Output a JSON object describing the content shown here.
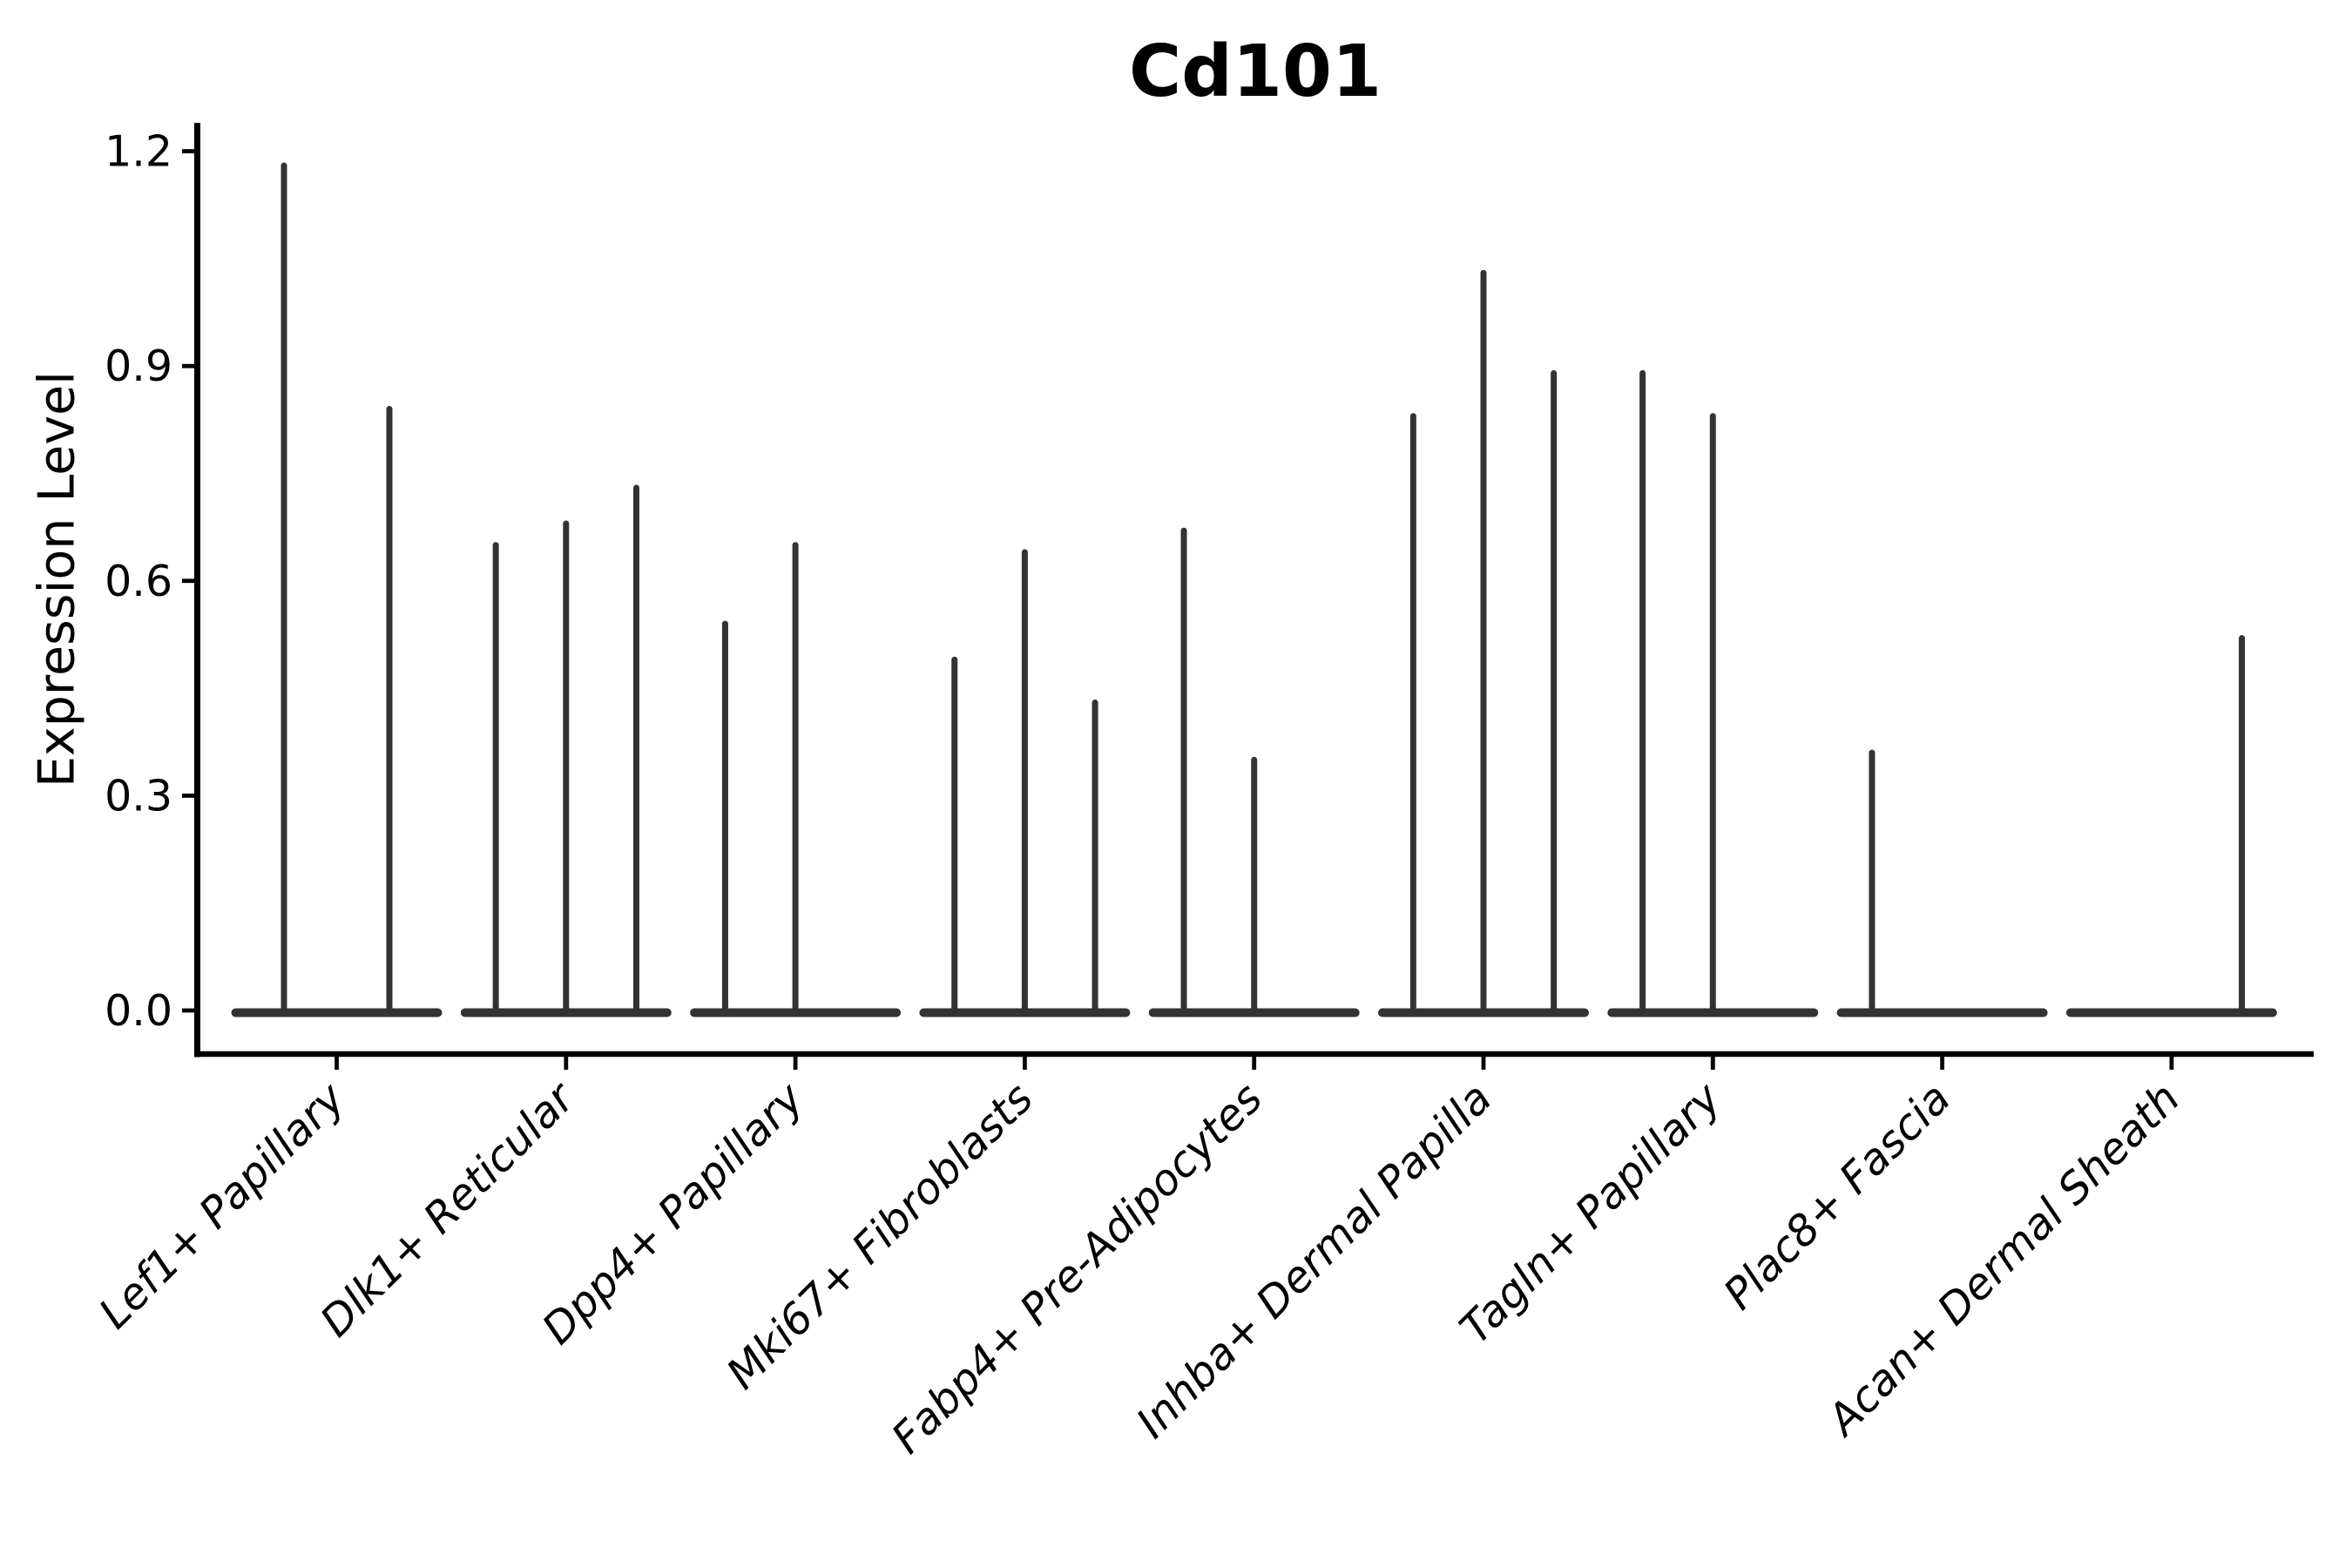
{
  "chart_data": {
    "type": "violin",
    "title": "Cd101",
    "ylabel": "Expression Level",
    "xlabel": "",
    "yticks": [
      0.0,
      0.3,
      0.6,
      0.9,
      1.2
    ],
    "ylim": [
      -0.06,
      1.27
    ],
    "grid": false,
    "legend": false,
    "violin_color": "#333333",
    "axis_color": "#000000",
    "background_color": "#ffffff",
    "x_tick_label_rotation_deg": 45,
    "groups": [
      {
        "label": "Lef1+ Papillary",
        "violins": [
          1.18,
          0.84
        ]
      },
      {
        "label": "Dlk1+ Reticular",
        "violins": [
          0.65,
          0.68,
          0.73
        ]
      },
      {
        "label": "Dpp4+ Papillary",
        "violins": [
          0.54,
          0.65,
          0
        ]
      },
      {
        "label": "Mki67+ Fibroblasts",
        "violins": [
          0.49,
          0.64,
          0.43
        ]
      },
      {
        "label": "Fabp4+ Pre-Adipocytes",
        "violins": [
          0.67,
          0.35,
          0
        ]
      },
      {
        "label": "Inhba+ Dermal Papilla",
        "violins": [
          0.83,
          1.03,
          0.89
        ]
      },
      {
        "label": "Tagln+ Papillary",
        "violins": [
          0.89,
          0.83,
          0
        ]
      },
      {
        "label": "Plac8+ Fascia",
        "violins": [
          0.36,
          0,
          0
        ]
      },
      {
        "label": "Acan+ Dermal Sheath",
        "violins": [
          0,
          0,
          0.52
        ]
      }
    ]
  }
}
